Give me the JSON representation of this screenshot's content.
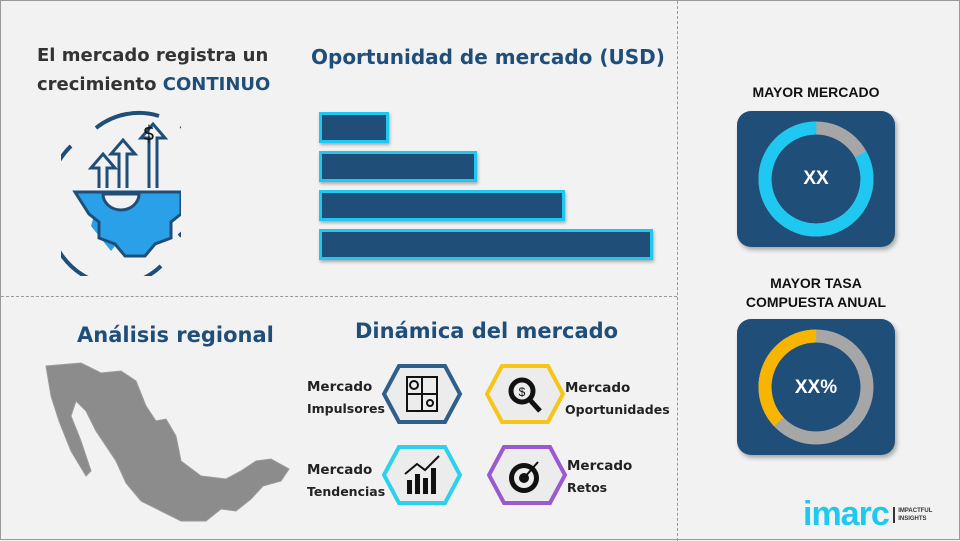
{
  "growth": {
    "line1": "El mercado registra un",
    "line2_prefix": "crecimiento ",
    "line2_accent": "CONTINUO",
    "icon": "gear-growth-dollar-icon"
  },
  "opportunity": {
    "title": "Oportunidad de mercado (USD)",
    "chart_data": {
      "type": "bar",
      "orientation": "horizontal",
      "values": [
        1,
        2.25,
        3.5,
        4.75
      ],
      "colors": {
        "fill": "#1f4e79",
        "border": "#1ec8f0"
      }
    }
  },
  "regional": {
    "title": "Análisis regional",
    "map": "mexico-map"
  },
  "dynamics": {
    "title": "Dinámica del mercado",
    "items": [
      {
        "line1": "Mercado",
        "line2": "Impulsores",
        "color": "#2e5f8a",
        "icon": "puzzle-icon"
      },
      {
        "line1": "Mercado",
        "line2": "Oportunidades",
        "color": "#f5c518",
        "icon": "magnifier-dollar-icon"
      },
      {
        "line1": "Mercado",
        "line2": "Tendencias",
        "color": "#2fd0ec",
        "icon": "chart-growth-icon"
      },
      {
        "line1": "Mercado",
        "line2": "Retos",
        "color": "#9b59d0",
        "icon": "target-icon"
      }
    ]
  },
  "largest_market": {
    "label": "MAYOR MERCADO",
    "value": "XX",
    "fraction": 0.83,
    "color": "#1ec8f0"
  },
  "cagr": {
    "label1": "MAYOR TASA",
    "label2": "COMPUESTA ANUAL",
    "value": "XX%",
    "fraction": 0.37,
    "color": "#f7b500"
  },
  "logo": {
    "name": "imarc",
    "tag1": "IMPACTFUL",
    "tag2": "INSIGHTS"
  }
}
